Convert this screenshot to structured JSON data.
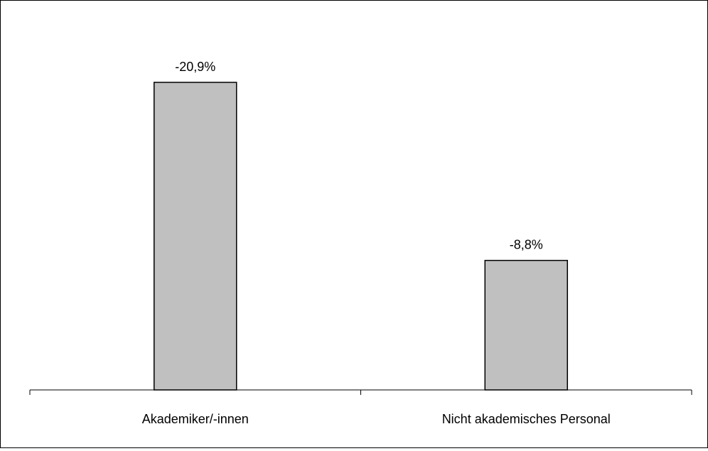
{
  "chart_data": {
    "type": "bar",
    "categories": [
      "Akademiker/-innen",
      "Nicht akademisches Personal"
    ],
    "values": [
      -20.9,
      -8.8
    ],
    "data_labels": [
      "-20,9%",
      "-8,8%"
    ],
    "title": "",
    "xlabel": "",
    "ylabel": "",
    "ylim": [
      0,
      -25
    ],
    "value_axis_reversed": true,
    "value_axis_visible": false,
    "grid": false,
    "legend": "none",
    "colors": {
      "bar_fill": "#c0c0c0",
      "bar_stroke": "#000000",
      "axis": "#000000"
    }
  }
}
